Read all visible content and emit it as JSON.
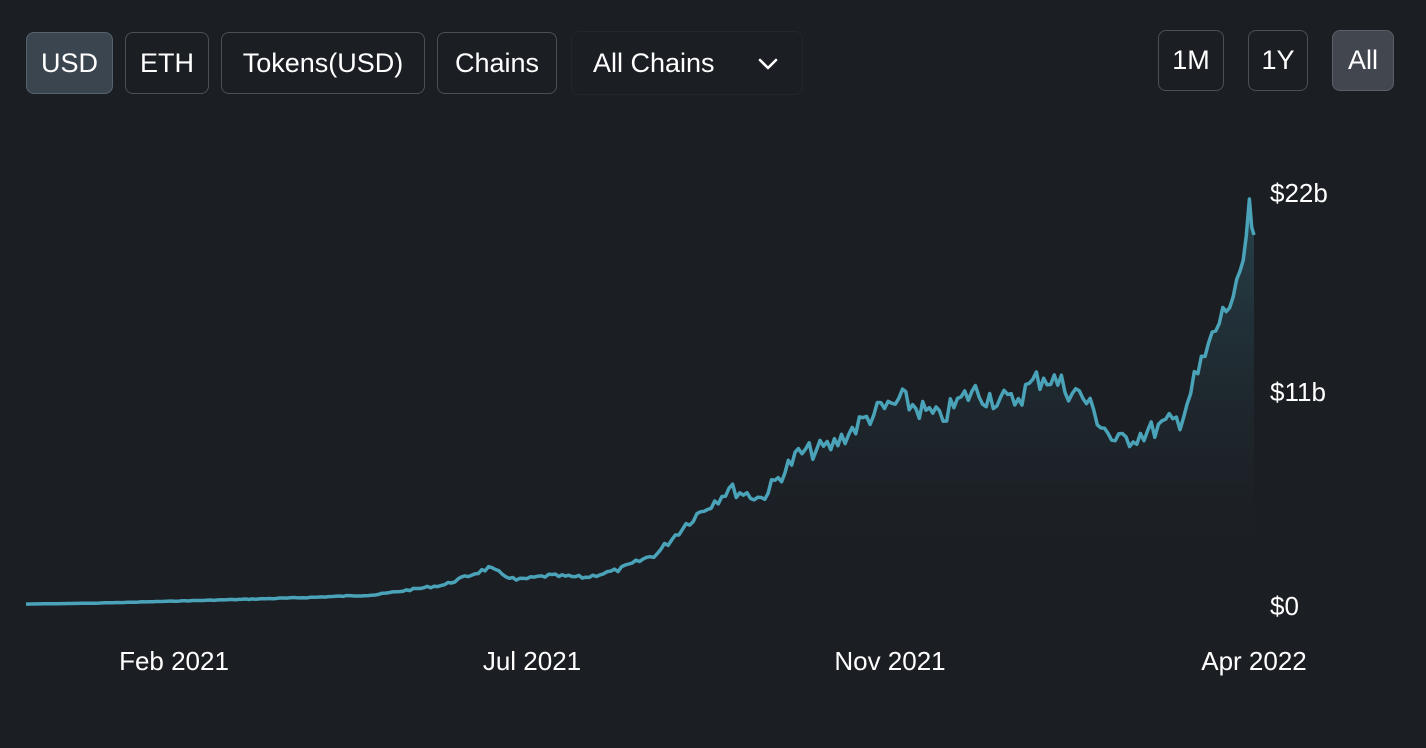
{
  "toolbar": {
    "denominations": [
      {
        "label": "USD",
        "active": true
      },
      {
        "label": "ETH",
        "active": false
      },
      {
        "label": "Tokens(USD)",
        "active": false
      },
      {
        "label": "Chains",
        "active": false
      }
    ],
    "chain_select": {
      "selected": "All Chains",
      "icon": "chevron-down-icon"
    },
    "ranges": [
      {
        "label": "1M",
        "active": false
      },
      {
        "label": "1Y",
        "active": false
      },
      {
        "label": "All",
        "active": true
      }
    ]
  },
  "colors": {
    "background": "#1b1e23",
    "line": "#4aa3b8",
    "area_top": "#2a4a55",
    "active_button": "#3a4550",
    "border": "#4a5058"
  },
  "chart_data": {
    "type": "area",
    "ylabel": "",
    "xlabel": "",
    "x_ticks": [
      "Feb 2021",
      "Jul 2021",
      "Nov 2021",
      "Apr 2022"
    ],
    "y_ticks": [
      "$0",
      "$11b",
      "$22b"
    ],
    "y_tick_values": [
      0,
      11,
      22
    ],
    "ylim": [
      0,
      22
    ],
    "y_unit": "billion USD",
    "grid": false,
    "legend": "none",
    "series": [
      {
        "x": [
          "2020-11-01",
          "2020-12-01",
          "2021-01-01",
          "2021-02-01",
          "2021-03-01",
          "2021-04-01",
          "2021-05-01",
          "2021-05-20",
          "2021-06-01",
          "2021-06-15",
          "2021-07-01",
          "2021-07-15",
          "2021-08-01",
          "2021-08-15",
          "2021-09-01",
          "2021-09-15",
          "2021-10-01",
          "2021-10-15",
          "2021-11-01",
          "2021-11-15",
          "2021-12-01",
          "2021-12-15",
          "2022-01-01",
          "2022-01-15",
          "2022-02-01",
          "2022-02-15",
          "2022-03-01",
          "2022-03-15",
          "2022-04-01",
          "2022-04-10",
          "2022-04-14",
          "2022-04-16"
        ],
        "values": [
          0.05,
          0.1,
          0.2,
          0.3,
          0.4,
          0.55,
          1.1,
          2.0,
          1.35,
          1.6,
          1.5,
          1.9,
          2.8,
          4.6,
          6.3,
          5.8,
          8.2,
          8.6,
          10.3,
          11.1,
          10.1,
          11.6,
          11.0,
          12.5,
          11.3,
          8.8,
          9.4,
          10.1,
          15.4,
          17.4,
          21.3,
          20.1
        ]
      }
    ]
  }
}
